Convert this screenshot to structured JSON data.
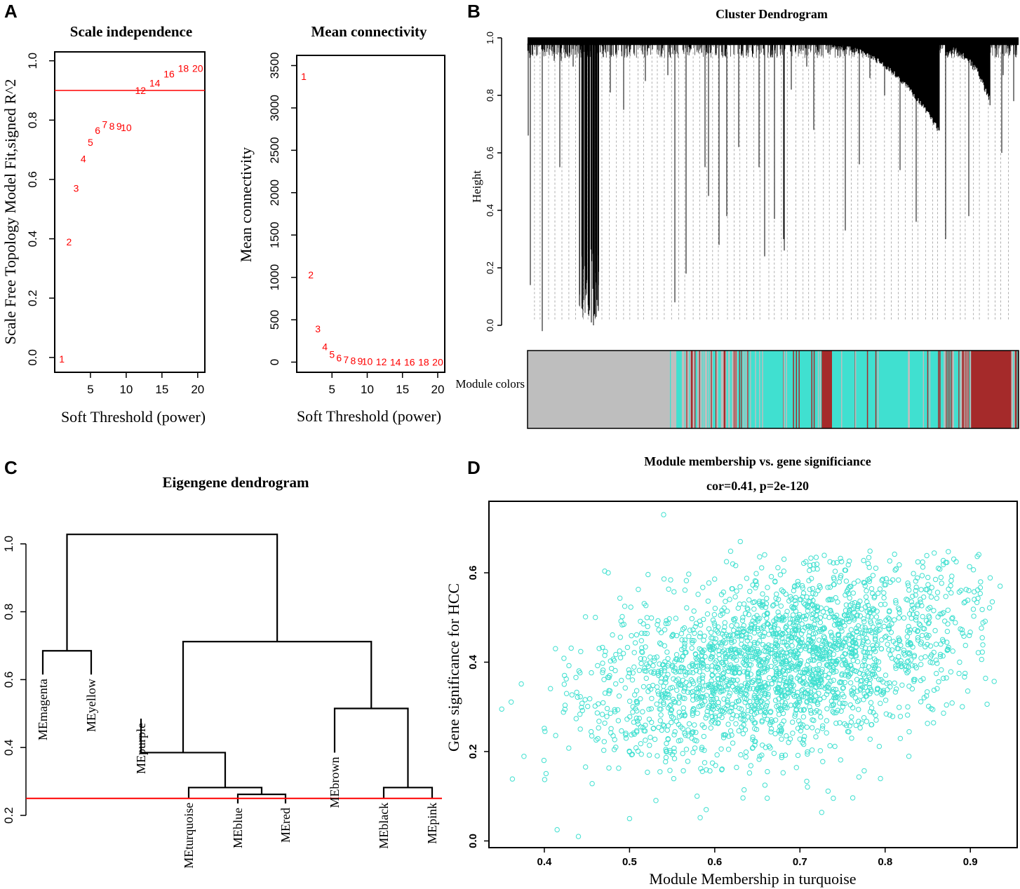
{
  "panels": {
    "a": "A",
    "b": "B",
    "c": "C",
    "d": "D"
  },
  "chart_data": [
    {
      "id": "scale_independence",
      "type": "scatter",
      "title": "Scale independence",
      "xlabel": "Soft Threshold (power)",
      "ylabel": "Scale Free Topology Model Fit,signed R^2",
      "xlim": [
        0,
        21
      ],
      "ylim": [
        -0.05,
        1.03
      ],
      "x_ticks": [
        "5",
        "10",
        "15",
        "20"
      ],
      "y_ticks": [
        "0.0",
        "0.2",
        "0.4",
        "0.6",
        "0.8",
        "1.0"
      ],
      "threshold_line": 0.9,
      "points": [
        {
          "x": 1,
          "y": -0.005,
          "label": "1"
        },
        {
          "x": 2,
          "y": 0.39,
          "label": "2"
        },
        {
          "x": 3,
          "y": 0.57,
          "label": "3"
        },
        {
          "x": 4,
          "y": 0.67,
          "label": "4"
        },
        {
          "x": 5,
          "y": 0.725,
          "label": "5"
        },
        {
          "x": 6,
          "y": 0.765,
          "label": "6"
        },
        {
          "x": 7,
          "y": 0.785,
          "label": "7"
        },
        {
          "x": 8,
          "y": 0.78,
          "label": "8"
        },
        {
          "x": 9,
          "y": 0.78,
          "label": "9"
        },
        {
          "x": 10,
          "y": 0.775,
          "label": "10"
        },
        {
          "x": 12,
          "y": 0.9,
          "label": "12"
        },
        {
          "x": 14,
          "y": 0.925,
          "label": "14"
        },
        {
          "x": 16,
          "y": 0.955,
          "label": "16"
        },
        {
          "x": 18,
          "y": 0.975,
          "label": "18"
        },
        {
          "x": 20,
          "y": 0.975,
          "label": "20"
        }
      ]
    },
    {
      "id": "mean_connectivity",
      "type": "scatter",
      "title": "Mean connectivity",
      "xlabel": "Soft Threshold (power)",
      "ylabel": "Mean connectivity",
      "xlim": [
        0,
        21
      ],
      "ylim": [
        -120,
        3620
      ],
      "x_ticks": [
        "5",
        "10",
        "15",
        "20"
      ],
      "y_ticks": [
        "0",
        "500",
        "1000",
        "1500",
        "2000",
        "2500",
        "3000",
        "3500"
      ],
      "points": [
        {
          "x": 1,
          "y": 3370,
          "label": "1"
        },
        {
          "x": 2,
          "y": 1030,
          "label": "2"
        },
        {
          "x": 3,
          "y": 395,
          "label": "3"
        },
        {
          "x": 4,
          "y": 180,
          "label": "4"
        },
        {
          "x": 5,
          "y": 90,
          "label": "5"
        },
        {
          "x": 6,
          "y": 50,
          "label": "6"
        },
        {
          "x": 7,
          "y": 30,
          "label": "7"
        },
        {
          "x": 8,
          "y": 18,
          "label": "8"
        },
        {
          "x": 9,
          "y": 12,
          "label": "9"
        },
        {
          "x": 10,
          "y": 8,
          "label": "10"
        },
        {
          "x": 12,
          "y": 4,
          "label": "12"
        },
        {
          "x": 14,
          "y": 2,
          "label": "14"
        },
        {
          "x": 16,
          "y": 1,
          "label": "16"
        },
        {
          "x": 18,
          "y": 1,
          "label": "18"
        },
        {
          "x": 20,
          "y": 0,
          "label": "20"
        }
      ]
    },
    {
      "id": "cluster_dendrogram",
      "type": "dendrogram",
      "title": "Cluster Dendrogram",
      "ylabel": "Height",
      "ylim": [
        0,
        1
      ],
      "y_ticks": [
        "0.0",
        "0.2",
        "0.4",
        "0.6",
        "0.8",
        "1.0"
      ],
      "color_bar_label": "Module colors",
      "module_colors": {
        "grey": "#bebebe",
        "turquoise": "#40e0d0",
        "brown": "#a52a2a"
      },
      "color_segments": [
        {
          "from": 0.0,
          "to": 0.29,
          "color": "grey"
        },
        {
          "from": 0.29,
          "to": 0.455,
          "color": "mixed"
        },
        {
          "from": 0.455,
          "to": 0.6,
          "color": "turquoise"
        },
        {
          "from": 0.6,
          "to": 0.62,
          "color": "brown"
        },
        {
          "from": 0.62,
          "to": 0.85,
          "color": "turquoise"
        },
        {
          "from": 0.85,
          "to": 0.905,
          "color": "mixed"
        },
        {
          "from": 0.905,
          "to": 0.985,
          "color": "brown"
        },
        {
          "from": 0.985,
          "to": 1.0,
          "color": "mixed"
        }
      ]
    },
    {
      "id": "eigengene_dendrogram",
      "type": "dendrogram",
      "title": "Eigengene dendrogram",
      "ylim": [
        0.2,
        1.08
      ],
      "y_ticks": [
        "0.2",
        "0.4",
        "0.6",
        "0.8",
        "1.0"
      ],
      "cut_height": 0.25,
      "leaves": [
        "MEmagenta",
        "MEyellow",
        "MEpurple",
        "MEturquoise",
        "MEblue",
        "MEred",
        "MEbrown",
        "MEblack",
        "MEpink"
      ],
      "leaf_heights": [
        0.615,
        0.615,
        0.485,
        0.25,
        0.235,
        0.235,
        0.385,
        0.25,
        0.25
      ],
      "merges": [
        {
          "left": "MEblue",
          "right": "MEred",
          "height": 0.262
        },
        {
          "left": "MEturquoise",
          "right": "MEblue+MEred",
          "height": 0.282
        },
        {
          "left": "MEpurple",
          "right": "MEturquoise+MEblue+MEred",
          "height": 0.385
        },
        {
          "left": "MEblack",
          "right": "MEpink",
          "height": 0.282
        },
        {
          "left": "MEbrown",
          "right": "MEblack+MEpink",
          "height": 0.515
        },
        {
          "left": "purple-group",
          "right": "brown-group",
          "height": 0.712
        },
        {
          "left": "MEmagenta",
          "right": "MEyellow",
          "height": 0.685
        },
        {
          "left": "magenta-group",
          "right": "rest",
          "height": 1.028
        }
      ]
    },
    {
      "id": "mm_vs_gs",
      "type": "scatter",
      "title": "Module membership vs. gene significiance",
      "subtitle": "cor=0.41, p=2e-120",
      "xlabel": "Module Membership in turquoise",
      "ylabel": "Gene significance for HCC",
      "xlim": [
        0.335,
        0.955
      ],
      "ylim": [
        -0.015,
        0.76
      ],
      "x_ticks": [
        "0.4",
        "0.5",
        "0.6",
        "0.7",
        "0.8",
        "0.9"
      ],
      "y_ticks": [
        "0.0",
        "0.2",
        "0.4",
        "0.6"
      ],
      "point_color": "#40e0d0",
      "n_points": 2400,
      "fit": {
        "mean_x": 0.68,
        "mean_y": 0.4,
        "sd_x": 0.115,
        "sd_y": 0.11,
        "cor": 0.41
      },
      "outliers": [
        {
          "x": 0.54,
          "y": 0.73
        },
        {
          "x": 0.35,
          "y": 0.295
        },
        {
          "x": 0.44,
          "y": 0.01
        },
        {
          "x": 0.415,
          "y": 0.025
        },
        {
          "x": 0.63,
          "y": 0.67
        },
        {
          "x": 0.935,
          "y": 0.57
        },
        {
          "x": 0.5,
          "y": 0.05
        },
        {
          "x": 0.59,
          "y": 0.07
        },
        {
          "x": 0.475,
          "y": 0.6
        }
      ]
    }
  ]
}
